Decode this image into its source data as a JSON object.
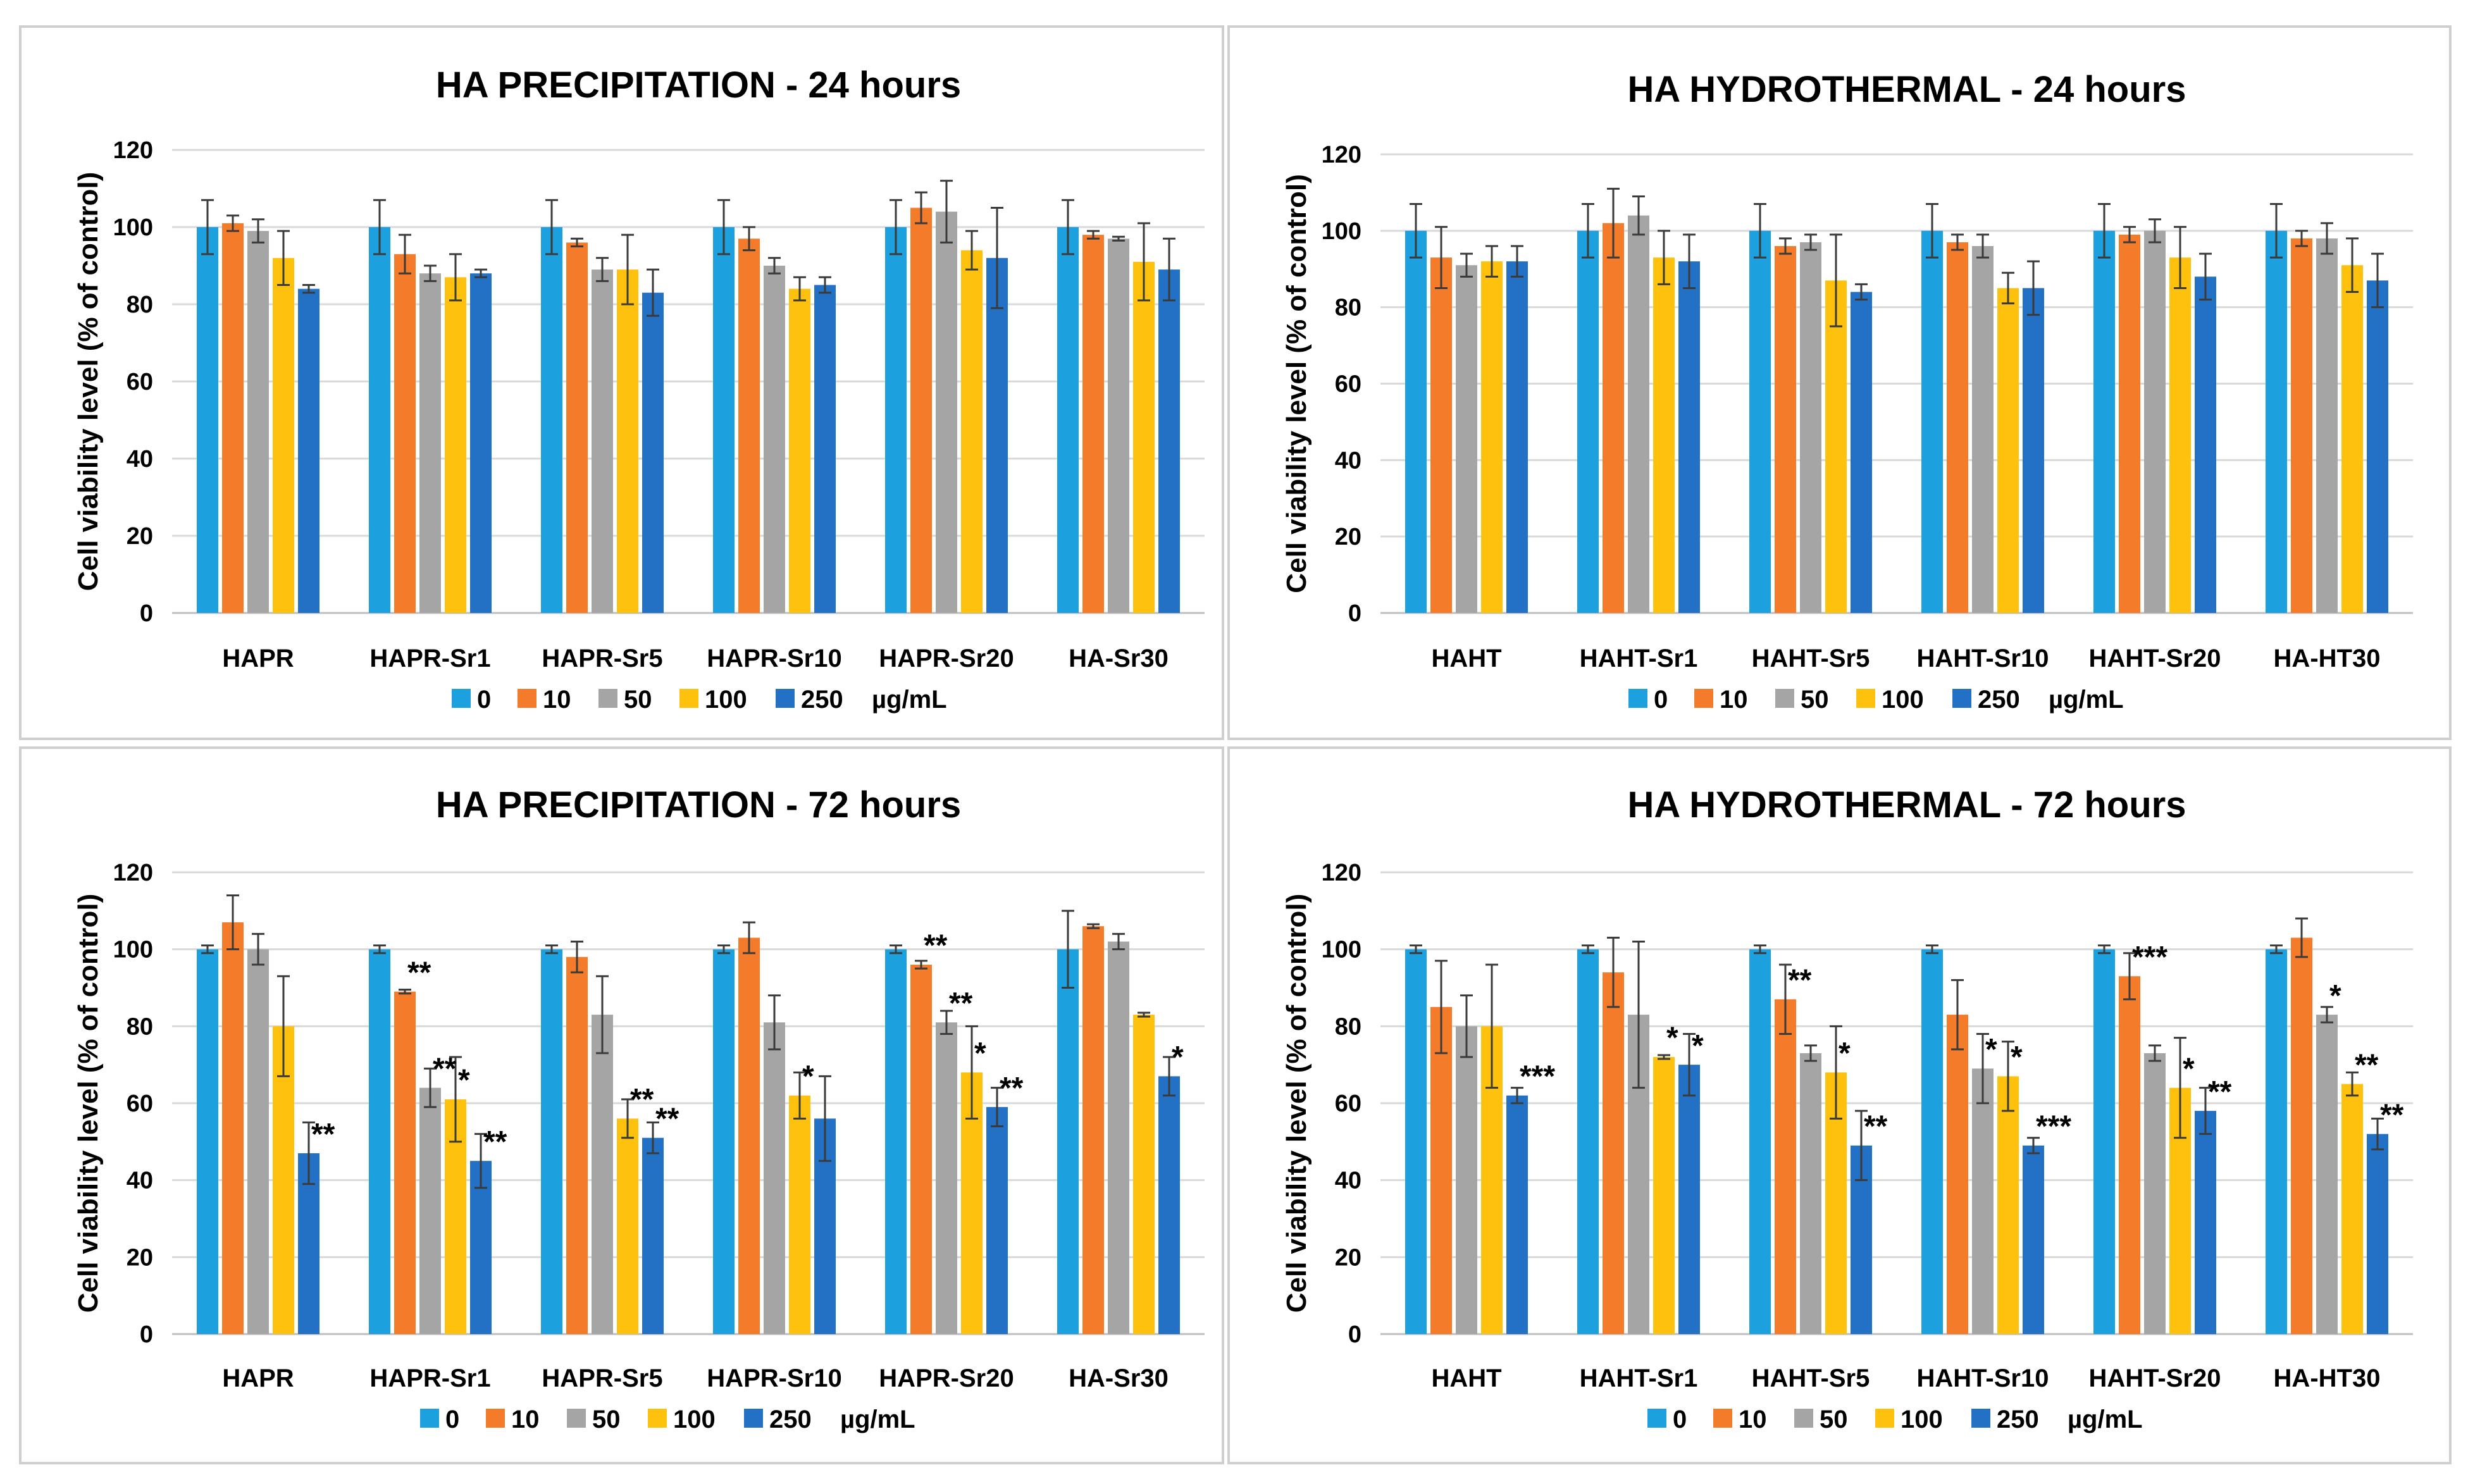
{
  "chart_data": [
    {
      "type": "bar",
      "title": "HA PRECIPITATION - 24 hours",
      "ylabel": "Cell viability level (% of control)",
      "xlabel": "",
      "ylim": [
        0,
        120
      ],
      "yticks": [
        0,
        20,
        40,
        60,
        80,
        100,
        120
      ],
      "grid": true,
      "legend_position": "bottom",
      "legend_unit": "µg/mL",
      "categories": [
        "HAPR",
        "HAPR-Sr1",
        "HAPR-Sr5",
        "HAPR-Sr10",
        "HAPR-Sr20",
        "HA-Sr30"
      ],
      "series": [
        {
          "name": "0",
          "color": "#1CA1DE",
          "values": [
            100,
            100,
            100,
            100,
            100,
            100
          ],
          "errors": [
            7,
            7,
            7,
            7,
            7,
            7
          ]
        },
        {
          "name": "10",
          "color": "#F47B2A",
          "values": [
            101,
            93,
            96,
            97,
            105,
            98
          ],
          "errors": [
            2,
            5,
            1,
            3,
            4,
            1
          ]
        },
        {
          "name": "50",
          "color": "#A5A5A5",
          "values": [
            99,
            88,
            89,
            90,
            104,
            97
          ],
          "errors": [
            3,
            2,
            3,
            2,
            8,
            0.5
          ]
        },
        {
          "name": "100",
          "color": "#FEC20E",
          "values": [
            92,
            87,
            89,
            84,
            94,
            91
          ],
          "errors": [
            7,
            6,
            9,
            3,
            5,
            10
          ]
        },
        {
          "name": "250",
          "color": "#2271C4",
          "values": [
            84,
            88,
            83,
            85,
            92,
            89
          ],
          "errors": [
            1,
            1,
            6,
            2,
            13,
            8
          ]
        }
      ],
      "annotations": []
    },
    {
      "type": "bar",
      "title": "HA HYDROTHERMAL - 24 hours",
      "ylabel": "Cell viability level (% of control)",
      "xlabel": "",
      "ylim": [
        0,
        120
      ],
      "yticks": [
        0,
        20,
        40,
        60,
        80,
        100,
        120
      ],
      "grid": true,
      "legend_position": "bottom",
      "legend_unit": "µg/mL",
      "categories": [
        "HAHT",
        "HAHT-Sr1",
        "HAHT-Sr5",
        "HAHT-Sr10",
        "HAHT-Sr20",
        "HA-HT30"
      ],
      "series": [
        {
          "name": "0",
          "color": "#1CA1DE",
          "values": [
            100,
            100,
            100,
            100,
            100,
            100
          ],
          "errors": [
            7,
            7,
            7,
            7,
            7,
            7
          ]
        },
        {
          "name": "10",
          "color": "#F47B2A",
          "values": [
            93,
            102,
            96,
            97,
            99,
            98
          ],
          "errors": [
            8,
            9,
            2,
            2,
            2,
            2
          ]
        },
        {
          "name": "50",
          "color": "#A5A5A5",
          "values": [
            91,
            104,
            97,
            96,
            100,
            98
          ],
          "errors": [
            3,
            5,
            2,
            3,
            3,
            4
          ]
        },
        {
          "name": "100",
          "color": "#FEC20E",
          "values": [
            92,
            93,
            87,
            85,
            93,
            91
          ],
          "errors": [
            4,
            7,
            12,
            4,
            8,
            7
          ]
        },
        {
          "name": "250",
          "color": "#2271C4",
          "values": [
            92,
            92,
            84,
            85,
            88,
            87
          ],
          "errors": [
            4,
            7,
            2,
            7,
            6,
            7
          ]
        }
      ],
      "annotations": []
    },
    {
      "type": "bar",
      "title": "HA PRECIPITATION - 72 hours",
      "ylabel": "Cell viability level (% of control)",
      "xlabel": "",
      "ylim": [
        0,
        120
      ],
      "yticks": [
        0,
        20,
        40,
        60,
        80,
        100,
        120
      ],
      "grid": true,
      "legend_position": "bottom",
      "legend_unit": "µg/mL",
      "categories": [
        "HAPR",
        "HAPR-Sr1",
        "HAPR-Sr5",
        "HAPR-Sr10",
        "HAPR-Sr20",
        "HA-Sr30"
      ],
      "series": [
        {
          "name": "0",
          "color": "#1CA1DE",
          "values": [
            100,
            100,
            100,
            100,
            100,
            100
          ],
          "errors": [
            1,
            1,
            1,
            1,
            1,
            10
          ]
        },
        {
          "name": "10",
          "color": "#F47B2A",
          "values": [
            107,
            89,
            98,
            103,
            96,
            106
          ],
          "errors": [
            7,
            0.5,
            4,
            4,
            1,
            0.5
          ]
        },
        {
          "name": "50",
          "color": "#A5A5A5",
          "values": [
            100,
            64,
            83,
            81,
            81,
            102
          ],
          "errors": [
            4,
            5,
            10,
            7,
            3,
            2
          ]
        },
        {
          "name": "100",
          "color": "#FEC20E",
          "values": [
            80,
            61,
            56,
            62,
            68,
            83
          ],
          "errors": [
            13,
            11,
            5,
            6,
            12,
            0.5
          ]
        },
        {
          "name": "250",
          "color": "#2271C4",
          "values": [
            47,
            45,
            51,
            56,
            59,
            67
          ],
          "errors": [
            8,
            7,
            4,
            11,
            5,
            5
          ]
        }
      ],
      "annotations": [
        {
          "category": "HAPR",
          "series": "250",
          "text": "**"
        },
        {
          "category": "HAPR-Sr1",
          "series": "10",
          "text": "**"
        },
        {
          "category": "HAPR-Sr1",
          "series": "50",
          "text": "**"
        },
        {
          "category": "HAPR-Sr1",
          "series": "100",
          "text": "*"
        },
        {
          "category": "HAPR-Sr1",
          "series": "250",
          "text": "**"
        },
        {
          "category": "HAPR-Sr5",
          "series": "100",
          "text": "**"
        },
        {
          "category": "HAPR-Sr5",
          "series": "250",
          "text": "**"
        },
        {
          "category": "HAPR-Sr10",
          "series": "100",
          "text": "*"
        },
        {
          "category": "HAPR-Sr20",
          "series": "10",
          "text": "**"
        },
        {
          "category": "HAPR-Sr20",
          "series": "50",
          "text": "**"
        },
        {
          "category": "HAPR-Sr20",
          "series": "100",
          "text": "*"
        },
        {
          "category": "HAPR-Sr20",
          "series": "250",
          "text": "**"
        },
        {
          "category": "HA-Sr30",
          "series": "250",
          "text": "*"
        }
      ]
    },
    {
      "type": "bar",
      "title": "HA HYDROTHERMAL - 72 hours",
      "ylabel": "Cell viability level (% of control)",
      "xlabel": "",
      "ylim": [
        0,
        120
      ],
      "yticks": [
        0,
        20,
        40,
        60,
        80,
        100,
        120
      ],
      "grid": true,
      "legend_position": "bottom",
      "legend_unit": "µg/mL",
      "categories": [
        "HAHT",
        "HAHT-Sr1",
        "HAHT-Sr5",
        "HAHT-Sr10",
        "HAHT-Sr20",
        "HA-HT30"
      ],
      "series": [
        {
          "name": "0",
          "color": "#1CA1DE",
          "values": [
            100,
            100,
            100,
            100,
            100,
            100
          ],
          "errors": [
            1,
            1,
            1,
            1,
            1,
            1
          ]
        },
        {
          "name": "10",
          "color": "#F47B2A",
          "values": [
            85,
            94,
            87,
            83,
            93,
            103
          ],
          "errors": [
            12,
            9,
            9,
            9,
            6,
            5
          ]
        },
        {
          "name": "50",
          "color": "#A5A5A5",
          "values": [
            80,
            83,
            73,
            69,
            73,
            83
          ],
          "errors": [
            8,
            19,
            2,
            9,
            2,
            2
          ]
        },
        {
          "name": "100",
          "color": "#FEC20E",
          "values": [
            80,
            72,
            68,
            67,
            64,
            65
          ],
          "errors": [
            16,
            0.5,
            12,
            9,
            13,
            3
          ]
        },
        {
          "name": "250",
          "color": "#2271C4",
          "values": [
            62,
            70,
            49,
            49,
            58,
            52
          ],
          "errors": [
            2,
            8,
            9,
            2,
            6,
            4
          ]
        }
      ],
      "annotations": [
        {
          "category": "HAHT",
          "series": "250",
          "text": "***"
        },
        {
          "category": "HAHT-Sr1",
          "series": "100",
          "text": "*"
        },
        {
          "category": "HAHT-Sr1",
          "series": "250",
          "text": "*"
        },
        {
          "category": "HAHT-Sr5",
          "series": "10",
          "text": "**"
        },
        {
          "category": "HAHT-Sr5",
          "series": "100",
          "text": "*"
        },
        {
          "category": "HAHT-Sr5",
          "series": "250",
          "text": "**"
        },
        {
          "category": "HAHT-Sr10",
          "series": "50",
          "text": "*"
        },
        {
          "category": "HAHT-Sr10",
          "series": "100",
          "text": "*"
        },
        {
          "category": "HAHT-Sr10",
          "series": "250",
          "text": "***"
        },
        {
          "category": "HAHT-Sr20",
          "series": "10",
          "text": "***"
        },
        {
          "category": "HAHT-Sr20",
          "series": "100",
          "text": "*"
        },
        {
          "category": "HAHT-Sr20",
          "series": "250",
          "text": "**"
        },
        {
          "category": "HA-HT30",
          "series": "50",
          "text": "*"
        },
        {
          "category": "HA-HT30",
          "series": "100",
          "text": "**"
        },
        {
          "category": "HA-HT30",
          "series": "250",
          "text": "**"
        }
      ]
    }
  ]
}
